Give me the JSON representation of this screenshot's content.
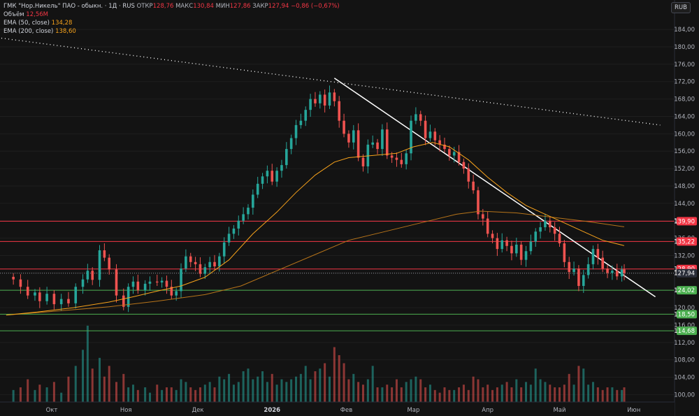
{
  "legend": {
    "title": "ГМК \"Нор.Никель\" ПАО - обыкн. · 1Д · RUS",
    "open_label": "ОТКР",
    "open_value": "128,76",
    "high_label": "МАКС",
    "high_value": "130,84",
    "low_label": "МИН",
    "low_value": "127,86",
    "close_label": "ЗАКР",
    "close_value": "127,94",
    "change": "−0,86 (−0,67%)",
    "volume_label": "Объём",
    "volume_value": "12,56M",
    "ema50_label": "EMA (50, close)",
    "ema50_value": "134,28",
    "ema200_label": "EMA (200, close)",
    "ema200_value": "138,60"
  },
  "currency": "RUB",
  "colors": {
    "background": "#131313",
    "up": "#26a69a",
    "down": "#ef5350",
    "ema50": "#f7a21b",
    "ema200": "#b7741a",
    "resistance": "#f23645",
    "support": "#4caf50",
    "trendline": "#ffffff"
  },
  "chart_data": {
    "type": "candlestick",
    "y_ticks": [
      "184,00",
      "180,00",
      "176,00",
      "172,00",
      "168,00",
      "164,00",
      "160,00",
      "156,00",
      "152,00",
      "148,00",
      "144,00",
      "140,00",
      "136,00",
      "132,00",
      "128,00",
      "124,00",
      "120,00",
      "116,00",
      "112,00",
      "108,00",
      "104,00",
      "100,00"
    ],
    "y_range": [
      98.3,
      188.2
    ],
    "x_labels": [
      {
        "label": "Окт",
        "day": 16
      },
      {
        "label": "Ноя",
        "day": 47
      },
      {
        "label": "Дек",
        "day": 77
      },
      {
        "label": "2026",
        "day": 108
      },
      {
        "label": "Фев",
        "day": 139
      },
      {
        "label": "Мар",
        "day": 167
      },
      {
        "label": "Апр",
        "day": 198
      },
      {
        "label": "Май",
        "day": 228
      },
      {
        "label": "Июн",
        "day": 259
      }
    ],
    "day_range": [
      -5,
      276
    ],
    "price_lines": [
      {
        "label": "139,90",
        "value": 139.9,
        "kind": "resistance"
      },
      {
        "label": "135,22",
        "value": 135.22,
        "kind": "resistance"
      },
      {
        "label": "128,90",
        "value": 128.9,
        "kind": "resistance"
      },
      {
        "label": "127,94",
        "value": 127.94,
        "kind": "last"
      },
      {
        "label": "124,02",
        "value": 124.02,
        "kind": "support"
      },
      {
        "label": "118,50",
        "value": 118.5,
        "kind": "support"
      },
      {
        "label": "114,68",
        "value": 114.68,
        "kind": "support"
      }
    ],
    "trendlines": [
      {
        "kind": "dotted",
        "from": [
          -5,
          182.0
        ],
        "to": [
          270,
          162.0
        ]
      },
      {
        "kind": "solid",
        "from": [
          134,
          172.8
        ],
        "to": [
          268,
          122.5
        ]
      }
    ],
    "closes": [
      [
        0,
        126.5
      ],
      [
        3,
        124.8
      ],
      [
        6,
        122.8
      ],
      [
        9,
        123.5
      ],
      [
        11,
        121.5
      ],
      [
        14,
        123.2
      ],
      [
        17,
        120.8
      ],
      [
        20,
        122.0
      ],
      [
        23,
        121.0
      ],
      [
        26,
        124.8
      ],
      [
        29,
        126.5
      ],
      [
        31,
        128.5
      ],
      [
        33,
        126.4
      ],
      [
        36,
        133.2
      ],
      [
        38,
        131.5
      ],
      [
        40,
        128.8
      ],
      [
        43,
        122.8
      ],
      [
        46,
        120.2
      ],
      [
        48,
        124.8
      ],
      [
        50,
        126.0
      ],
      [
        52,
        124.0
      ],
      [
        55,
        125.5
      ],
      [
        57,
        126.0
      ],
      [
        60,
        125.8
      ],
      [
        62,
        126.2
      ],
      [
        64,
        124.8
      ],
      [
        66,
        122.8
      ],
      [
        68,
        123.8
      ],
      [
        70,
        129.0
      ],
      [
        72,
        131.8
      ],
      [
        74,
        130.5
      ],
      [
        76,
        130.0
      ],
      [
        78,
        127.8
      ],
      [
        80,
        129.3
      ],
      [
        82,
        130.5
      ],
      [
        84,
        129.5
      ],
      [
        86,
        131.8
      ],
      [
        88,
        135.0
      ],
      [
        90,
        137.0
      ],
      [
        92,
        138.2
      ],
      [
        94,
        140.0
      ],
      [
        96,
        141.5
      ],
      [
        98,
        143.0
      ],
      [
        100,
        146.0
      ],
      [
        102,
        148.5
      ],
      [
        104,
        150.2
      ],
      [
        106,
        151.5
      ],
      [
        108,
        149.0
      ],
      [
        110,
        151.5
      ],
      [
        112,
        152.8
      ],
      [
        114,
        156.5
      ],
      [
        116,
        159.0
      ],
      [
        118,
        162.0
      ],
      [
        120,
        163.0
      ],
      [
        122,
        165.5
      ],
      [
        124,
        168.0
      ],
      [
        126,
        167.0
      ],
      [
        128,
        169.0
      ],
      [
        130,
        166.5
      ],
      [
        132,
        169.5
      ],
      [
        134,
        167.5
      ],
      [
        136,
        163.0
      ],
      [
        138,
        160.0
      ],
      [
        140,
        158.0
      ],
      [
        142,
        160.8
      ],
      [
        144,
        154.5
      ],
      [
        146,
        152.5
      ],
      [
        148,
        157.5
      ],
      [
        150,
        158.0
      ],
      [
        152,
        156.5
      ],
      [
        154,
        161.0
      ],
      [
        156,
        155.0
      ],
      [
        158,
        154.5
      ],
      [
        160,
        154.0
      ],
      [
        162,
        153.0
      ],
      [
        164,
        155.5
      ],
      [
        166,
        163.0
      ],
      [
        168,
        164.5
      ],
      [
        170,
        163.0
      ],
      [
        172,
        159.0
      ],
      [
        174,
        160.5
      ],
      [
        176,
        158.5
      ],
      [
        178,
        157.5
      ],
      [
        180,
        156.5
      ],
      [
        182,
        155.0
      ],
      [
        184,
        155.8
      ],
      [
        186,
        153.5
      ],
      [
        188,
        152.0
      ],
      [
        190,
        149.0
      ],
      [
        192,
        147.0
      ],
      [
        194,
        141.5
      ],
      [
        196,
        140.5
      ],
      [
        198,
        137.0
      ],
      [
        200,
        136.0
      ],
      [
        202,
        133.5
      ],
      [
        204,
        135.5
      ],
      [
        206,
        134.2
      ],
      [
        208,
        132.5
      ],
      [
        210,
        134.5
      ],
      [
        212,
        131.0
      ],
      [
        214,
        133.0
      ],
      [
        216,
        135.2
      ],
      [
        218,
        137.5
      ],
      [
        220,
        138.5
      ],
      [
        222,
        140.0
      ],
      [
        224,
        138.5
      ],
      [
        226,
        137.0
      ],
      [
        228,
        134.8
      ],
      [
        230,
        130.5
      ],
      [
        232,
        128.2
      ],
      [
        234,
        129.0
      ],
      [
        236,
        125.0
      ],
      [
        238,
        127.5
      ],
      [
        240,
        130.0
      ],
      [
        242,
        133.5
      ],
      [
        244,
        131.5
      ],
      [
        246,
        129.0
      ],
      [
        248,
        128.0
      ],
      [
        250,
        128.5
      ],
      [
        252,
        127.2
      ],
      [
        254,
        128.8
      ],
      [
        255,
        127.94
      ]
    ],
    "ema50": [
      [
        -3,
        118.3
      ],
      [
        10,
        119.0
      ],
      [
        25,
        120.0
      ],
      [
        40,
        121.3
      ],
      [
        50,
        122.5
      ],
      [
        60,
        123.8
      ],
      [
        70,
        125.0
      ],
      [
        80,
        127.0
      ],
      [
        90,
        131.0
      ],
      [
        100,
        137.0
      ],
      [
        110,
        142.0
      ],
      [
        118,
        146.5
      ],
      [
        126,
        150.5
      ],
      [
        134,
        153.5
      ],
      [
        140,
        154.5
      ],
      [
        150,
        155.0
      ],
      [
        160,
        155.5
      ],
      [
        167,
        157.0
      ],
      [
        175,
        158.0
      ],
      [
        182,
        157.0
      ],
      [
        190,
        154.0
      ],
      [
        198,
        150.0
      ],
      [
        206,
        146.5
      ],
      [
        214,
        143.5
      ],
      [
        222,
        141.5
      ],
      [
        230,
        139.5
      ],
      [
        238,
        137.5
      ],
      [
        246,
        135.5
      ],
      [
        255,
        134.28
      ]
    ],
    "ema200": [
      [
        -3,
        118.3
      ],
      [
        20,
        119.3
      ],
      [
        40,
        120.2
      ],
      [
        60,
        121.5
      ],
      [
        80,
        123.0
      ],
      [
        95,
        125.0
      ],
      [
        110,
        128.5
      ],
      [
        125,
        132.0
      ],
      [
        140,
        135.5
      ],
      [
        155,
        137.5
      ],
      [
        170,
        139.5
      ],
      [
        185,
        141.5
      ],
      [
        195,
        142.2
      ],
      [
        210,
        141.8
      ],
      [
        225,
        140.8
      ],
      [
        240,
        139.8
      ],
      [
        255,
        138.6
      ]
    ],
    "volume_scale_max": 30,
    "volumes": [
      [
        0,
        5
      ],
      [
        3,
        6
      ],
      [
        6,
        9
      ],
      [
        9,
        5
      ],
      [
        11,
        7
      ],
      [
        14,
        6
      ],
      [
        17,
        8
      ],
      [
        20,
        4
      ],
      [
        23,
        10
      ],
      [
        26,
        14
      ],
      [
        29,
        20
      ],
      [
        31,
        29
      ],
      [
        33,
        13
      ],
      [
        36,
        17
      ],
      [
        38,
        10
      ],
      [
        40,
        14
      ],
      [
        43,
        8
      ],
      [
        46,
        11
      ],
      [
        48,
        6
      ],
      [
        50,
        7
      ],
      [
        52,
        5
      ],
      [
        55,
        6
      ],
      [
        57,
        4
      ],
      [
        60,
        7
      ],
      [
        62,
        5
      ],
      [
        64,
        6
      ],
      [
        66,
        6
      ],
      [
        68,
        5
      ],
      [
        70,
        9
      ],
      [
        72,
        8
      ],
      [
        74,
        6
      ],
      [
        76,
        5
      ],
      [
        78,
        6
      ],
      [
        80,
        7
      ],
      [
        82,
        8
      ],
      [
        84,
        6
      ],
      [
        86,
        10
      ],
      [
        88,
        9
      ],
      [
        90,
        11
      ],
      [
        92,
        7
      ],
      [
        94,
        8
      ],
      [
        96,
        12
      ],
      [
        98,
        13
      ],
      [
        100,
        9
      ],
      [
        102,
        10
      ],
      [
        104,
        12
      ],
      [
        106,
        8
      ],
      [
        108,
        11
      ],
      [
        110,
        7
      ],
      [
        112,
        9
      ],
      [
        114,
        8
      ],
      [
        116,
        9
      ],
      [
        118,
        10
      ],
      [
        120,
        11
      ],
      [
        122,
        14
      ],
      [
        124,
        9
      ],
      [
        126,
        12
      ],
      [
        128,
        13
      ],
      [
        130,
        15
      ],
      [
        132,
        10
      ],
      [
        134,
        21
      ],
      [
        136,
        18
      ],
      [
        138,
        15
      ],
      [
        140,
        9
      ],
      [
        142,
        11
      ],
      [
        144,
        8
      ],
      [
        146,
        7
      ],
      [
        148,
        9
      ],
      [
        150,
        14
      ],
      [
        152,
        6
      ],
      [
        154,
        6
      ],
      [
        156,
        7
      ],
      [
        158,
        6
      ],
      [
        160,
        9
      ],
      [
        162,
        6
      ],
      [
        164,
        8
      ],
      [
        166,
        9
      ],
      [
        168,
        10
      ],
      [
        170,
        9
      ],
      [
        172,
        6
      ],
      [
        174,
        7
      ],
      [
        176,
        5
      ],
      [
        178,
        4
      ],
      [
        180,
        6
      ],
      [
        182,
        5
      ],
      [
        184,
        5
      ],
      [
        186,
        6
      ],
      [
        188,
        7
      ],
      [
        190,
        5
      ],
      [
        192,
        10
      ],
      [
        194,
        9
      ],
      [
        196,
        6
      ],
      [
        198,
        7
      ],
      [
        200,
        5
      ],
      [
        202,
        6
      ],
      [
        204,
        7
      ],
      [
        206,
        8
      ],
      [
        208,
        6
      ],
      [
        210,
        9
      ],
      [
        212,
        6
      ],
      [
        214,
        8
      ],
      [
        216,
        7
      ],
      [
        218,
        13
      ],
      [
        220,
        9
      ],
      [
        222,
        8
      ],
      [
        224,
        7
      ],
      [
        226,
        6
      ],
      [
        228,
        6
      ],
      [
        230,
        7
      ],
      [
        232,
        11
      ],
      [
        234,
        7
      ],
      [
        236,
        14
      ],
      [
        238,
        13
      ],
      [
        240,
        7
      ],
      [
        242,
        8
      ],
      [
        244,
        6
      ],
      [
        246,
        5
      ],
      [
        248,
        6
      ],
      [
        250,
        6
      ],
      [
        252,
        5
      ],
      [
        254,
        5
      ],
      [
        255,
        6
      ]
    ]
  }
}
